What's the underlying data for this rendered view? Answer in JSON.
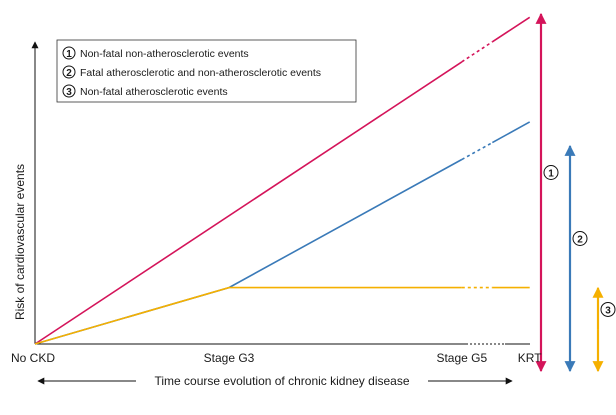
{
  "chart_data": {
    "type": "line",
    "ylabel": "Risk of cardiovascular events",
    "xlabel": "Time course evolution of chronic kidney disease",
    "categories": [
      "No CKD",
      "Stage G3",
      "Stage G5",
      "KRT"
    ],
    "x_positions": [
      0,
      1,
      2.2,
      2.55
    ],
    "ylim": [
      0,
      1
    ],
    "legend": [
      {
        "num": "1",
        "label": "Non-fatal non-atherosclerotic events"
      },
      {
        "num": "2",
        "label": "Fatal atherosclerotic and non-atherosclerotic events"
      },
      {
        "num": "3",
        "label": "Non-fatal atherosclerotic events"
      }
    ],
    "series": [
      {
        "id": "1",
        "color": "#d4145a",
        "points": [
          [
            0,
            0
          ],
          [
            2.2,
            0.855
          ],
          [
            2.55,
            0.99
          ]
        ]
      },
      {
        "id": "2",
        "color": "#3a7ab8",
        "points": [
          [
            0,
            0
          ],
          [
            1,
            0.171
          ],
          [
            2.2,
            0.559
          ],
          [
            2.55,
            0.673
          ]
        ]
      },
      {
        "id": "3",
        "color": "#f5b000",
        "points": [
          [
            0,
            0
          ],
          [
            1,
            0.171
          ],
          [
            2.2,
            0.171
          ],
          [
            2.55,
            0.171
          ]
        ]
      }
    ],
    "range_arrows": [
      {
        "id": "1",
        "color": "#d4145a",
        "from": 0,
        "to": 1.0
      },
      {
        "id": "2",
        "color": "#3a7ab8",
        "from": 0,
        "to": 0.6
      },
      {
        "id": "3",
        "color": "#f5b000",
        "from": 0,
        "to": 0.17
      }
    ]
  }
}
